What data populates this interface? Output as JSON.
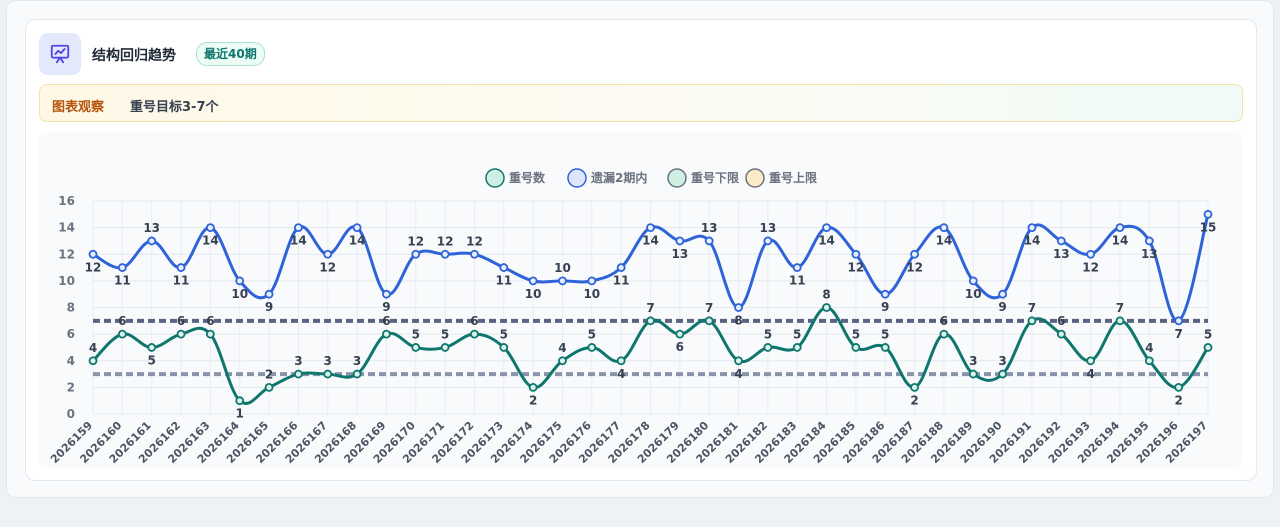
{
  "header": {
    "title": "结构回归趋势",
    "badge": "最近40期"
  },
  "observation": {
    "tag": "图表观察",
    "text": "重号目标3-7个"
  },
  "icons": {
    "header_icon": "presentation-chart-icon"
  },
  "colors": {
    "repeat": "#0f766e",
    "missed": "#2f63d8",
    "lower": "#8a93aa",
    "upper": "#5a6482"
  },
  "chart_data": {
    "type": "line",
    "categories": [
      "2026159",
      "2026160",
      "2026161",
      "2026162",
      "2026163",
      "2026164",
      "2026165",
      "2026166",
      "2026167",
      "2026168",
      "2026169",
      "2026170",
      "2026171",
      "2026172",
      "2026173",
      "2026174",
      "2026175",
      "2026176",
      "2026177",
      "2026178",
      "2026179",
      "2026180",
      "2026181",
      "2026182",
      "2026183",
      "2026184",
      "2026185",
      "2026186",
      "2026187",
      "2026188",
      "2026189",
      "2026190",
      "2026191",
      "2026192",
      "2026193",
      "2026194",
      "2026195",
      "2026196",
      "2026197"
    ],
    "series": [
      {
        "name": "重号数",
        "color": "#0f766e",
        "values": [
          4,
          6,
          5,
          6,
          6,
          1,
          2,
          3,
          3,
          3,
          6,
          5,
          5,
          6,
          5,
          2,
          4,
          5,
          4,
          7,
          6,
          7,
          4,
          5,
          5,
          8,
          5,
          5,
          2,
          6,
          3,
          3,
          7,
          6,
          4,
          7,
          4,
          2,
          5
        ]
      },
      {
        "name": "遗漏2期内",
        "color": "#2f63d8",
        "values": [
          12,
          11,
          13,
          11,
          14,
          10,
          9,
          14,
          12,
          14,
          9,
          12,
          12,
          12,
          11,
          10,
          10,
          10,
          11,
          14,
          13,
          13,
          8,
          13,
          11,
          14,
          12,
          9,
          12,
          14,
          10,
          9,
          14,
          13,
          12,
          14,
          13,
          7,
          15
        ]
      },
      {
        "name": "重号下限",
        "color": "#8a93aa",
        "values": [
          3,
          3,
          3,
          3,
          3,
          3,
          3,
          3,
          3,
          3,
          3,
          3,
          3,
          3,
          3,
          3,
          3,
          3,
          3,
          3,
          3,
          3,
          3,
          3,
          3,
          3,
          3,
          3,
          3,
          3,
          3,
          3,
          3,
          3,
          3,
          3,
          3,
          3,
          3
        ]
      },
      {
        "name": "重号上限",
        "color": "#5a6482",
        "values": [
          7,
          7,
          7,
          7,
          7,
          7,
          7,
          7,
          7,
          7,
          7,
          7,
          7,
          7,
          7,
          7,
          7,
          7,
          7,
          7,
          7,
          7,
          7,
          7,
          7,
          7,
          7,
          7,
          7,
          7,
          7,
          7,
          7,
          7,
          7,
          7,
          7,
          7,
          7
        ]
      }
    ],
    "y_ticks": [
      0,
      2,
      4,
      6,
      8,
      10,
      12,
      14,
      16
    ],
    "ylim": [
      0,
      16
    ],
    "grid": true,
    "legend": "top-center"
  }
}
